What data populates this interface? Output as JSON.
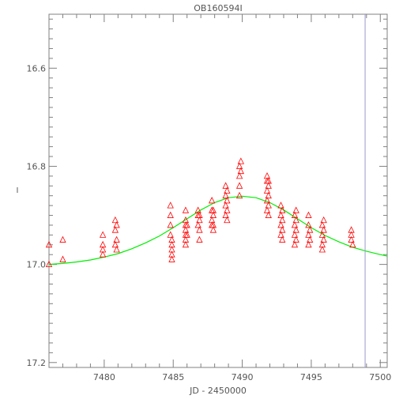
{
  "chart_data": {
    "type": "scatter",
    "title": "OB160594I",
    "xlabel": "JD - 2450000",
    "ylabel": "I",
    "xlim": [
      7476,
      7500.5
    ],
    "ylim": [
      17.21,
      16.49
    ],
    "y_inverted": true,
    "grid": false,
    "x_ticks": [
      "7480",
      "7485",
      "7490",
      "7495",
      "7500"
    ],
    "y_ticks": [
      "16.6",
      "16.8",
      "17.0",
      "17.2"
    ],
    "colors": {
      "points": "#ff0000",
      "model": "#00ee00",
      "marker_line": "#9999cc",
      "axes": "#808080"
    },
    "vertical_line_x": 7498.9,
    "series": [
      {
        "kind": "points",
        "marker": "triangle-up",
        "x": [
          7476.0,
          7476.0,
          7477.0,
          7477.0,
          7479.9,
          7479.9,
          7479.9,
          7479.9,
          7480.8,
          7480.8,
          7480.8,
          7480.9,
          7480.9,
          7480.9,
          7484.8,
          7484.8,
          7484.8,
          7484.8,
          7484.9,
          7484.9,
          7484.9,
          7484.9,
          7484.9,
          7485.9,
          7485.9,
          7485.9,
          7485.9,
          7485.9,
          7485.9,
          7485.9,
          7486.0,
          7486.0,
          7486.8,
          7486.8,
          7486.8,
          7486.9,
          7486.9,
          7486.9,
          7486.9,
          7487.8,
          7487.8,
          7487.8,
          7487.8,
          7487.9,
          7487.9,
          7487.9,
          7487.9,
          7488.8,
          7488.8,
          7488.8,
          7488.8,
          7488.9,
          7488.9,
          7488.9,
          7488.9,
          7489.8,
          7489.8,
          7489.8,
          7489.8,
          7489.9,
          7489.9,
          7491.8,
          7491.8,
          7491.8,
          7491.8,
          7491.8,
          7491.9,
          7491.9,
          7491.9,
          7491.9,
          7491.9,
          7492.8,
          7492.8,
          7492.8,
          7492.8,
          7492.9,
          7492.9,
          7492.9,
          7492.9,
          7493.8,
          7493.8,
          7493.8,
          7493.8,
          7493.9,
          7493.9,
          7493.9,
          7493.9,
          7494.8,
          7494.8,
          7494.8,
          7494.8,
          7494.9,
          7494.9,
          7495.8,
          7495.8,
          7495.8,
          7495.8,
          7495.9,
          7495.9,
          7495.9,
          7497.9,
          7497.9,
          7497.9,
          7498.0
        ],
        "y": [
          16.96,
          17.0,
          16.95,
          16.99,
          16.94,
          16.96,
          16.97,
          16.98,
          16.91,
          16.93,
          16.96,
          16.92,
          16.95,
          16.97,
          16.88,
          16.9,
          16.92,
          16.94,
          16.95,
          16.96,
          16.97,
          16.98,
          16.99,
          16.89,
          16.91,
          16.92,
          16.93,
          16.94,
          16.95,
          16.96,
          16.92,
          16.94,
          16.89,
          16.9,
          16.92,
          16.91,
          16.93,
          16.95,
          16.9,
          16.87,
          16.89,
          16.91,
          16.92,
          16.89,
          16.9,
          16.92,
          16.93,
          16.84,
          16.86,
          16.88,
          16.9,
          16.85,
          16.87,
          16.89,
          16.91,
          16.8,
          16.82,
          16.84,
          16.86,
          16.79,
          16.81,
          16.82,
          16.83,
          16.85,
          16.87,
          16.89,
          16.83,
          16.86,
          16.88,
          16.9,
          16.84,
          16.88,
          16.9,
          16.92,
          16.94,
          16.89,
          16.91,
          16.93,
          16.95,
          16.9,
          16.92,
          16.94,
          16.96,
          16.89,
          16.91,
          16.93,
          16.95,
          16.9,
          16.92,
          16.94,
          16.96,
          16.93,
          16.95,
          16.92,
          16.94,
          16.96,
          16.97,
          16.91,
          16.93,
          16.95,
          16.93,
          16.94,
          16.95,
          16.96
        ]
      },
      {
        "kind": "model",
        "x": [
          7476.0,
          7477.0,
          7478.0,
          7479.0,
          7480.0,
          7481.0,
          7482.0,
          7483.0,
          7484.0,
          7485.0,
          7486.0,
          7487.0,
          7488.0,
          7489.0,
          7490.0,
          7491.0,
          7492.0,
          7493.0,
          7494.0,
          7495.0,
          7496.0,
          7497.0,
          7498.0,
          7499.0,
          7500.0,
          7500.5
        ],
        "y": [
          17.0,
          16.998,
          16.995,
          16.991,
          16.985,
          16.978,
          16.968,
          16.956,
          16.942,
          16.925,
          16.907,
          16.889,
          16.874,
          16.864,
          16.861,
          16.864,
          16.874,
          16.889,
          16.907,
          16.925,
          16.941,
          16.954,
          16.965,
          16.973,
          16.98,
          16.983
        ]
      }
    ]
  }
}
